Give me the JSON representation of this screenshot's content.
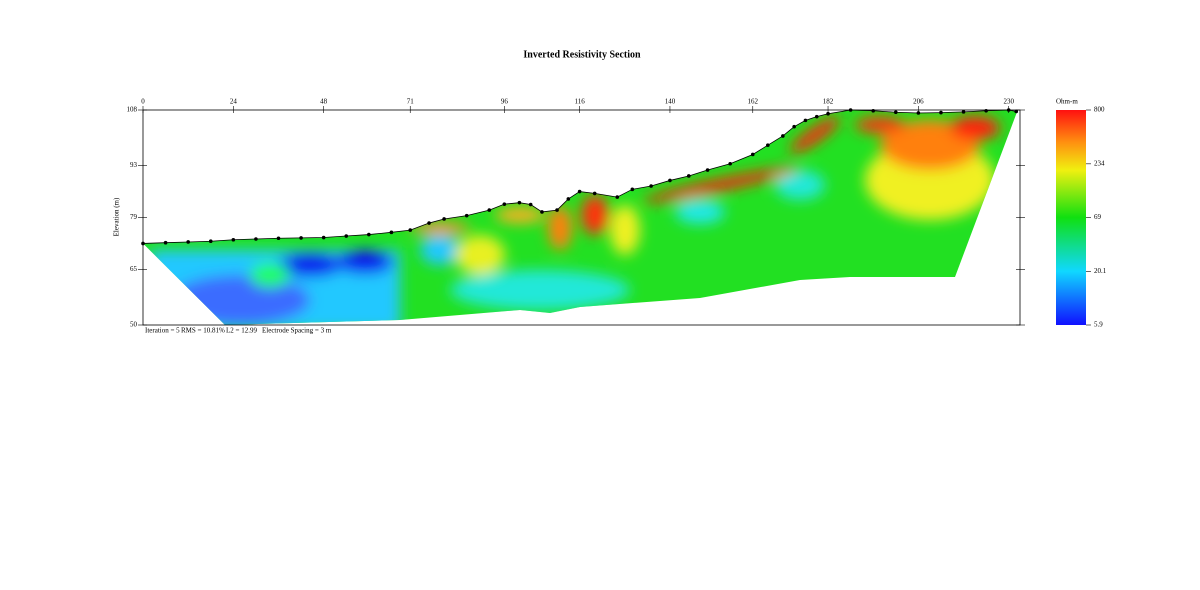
{
  "chart_data": {
    "type": "line",
    "title": "Inverted Resistivity Section",
    "y_label": "Elevation (m)",
    "x": [
      0,
      6,
      12,
      18,
      24,
      30,
      36,
      42,
      48,
      54,
      60,
      66,
      71,
      76,
      80,
      86,
      92,
      96,
      100,
      103,
      106,
      110,
      113,
      116,
      120,
      126,
      130,
      135,
      140,
      145,
      150,
      156,
      162,
      166,
      170,
      173,
      176,
      179,
      182,
      188,
      194,
      200,
      206,
      212,
      218,
      224,
      230,
      232
    ],
    "values": [
      72,
      72.2,
      72.4,
      72.6,
      73,
      73.2,
      73.4,
      73.5,
      73.6,
      74,
      74.4,
      75,
      75.6,
      77.5,
      78.6,
      79.5,
      81,
      82.6,
      83,
      82.5,
      80.5,
      81,
      84,
      86,
      85.5,
      84.5,
      86.6,
      87.5,
      89,
      90.2,
      91.8,
      93.5,
      96,
      98.5,
      101,
      103.5,
      105.2,
      106.2,
      107,
      108,
      107.8,
      107.4,
      107.2,
      107.3,
      107.5,
      107.8,
      108,
      107.6
    ],
    "color": "#000000",
    "xlim": [
      0,
      233
    ],
    "xticks": [
      0,
      24,
      48,
      71,
      96,
      116,
      140,
      162,
      182,
      206,
      230
    ],
    "ylim": [
      50,
      108
    ],
    "yticks": [
      50,
      65,
      79,
      93,
      108
    ],
    "colorbar": {
      "label": "Ohm-m",
      "lim": [
        5.9,
        800
      ],
      "log": true,
      "ticks": [
        5.9,
        20.1,
        69,
        234,
        800
      ]
    },
    "annotations": [
      "Iteration = 5",
      "RMS = 10.81%",
      "L2 = 12.99",
      "Electrode Spacing = 3 m"
    ]
  }
}
